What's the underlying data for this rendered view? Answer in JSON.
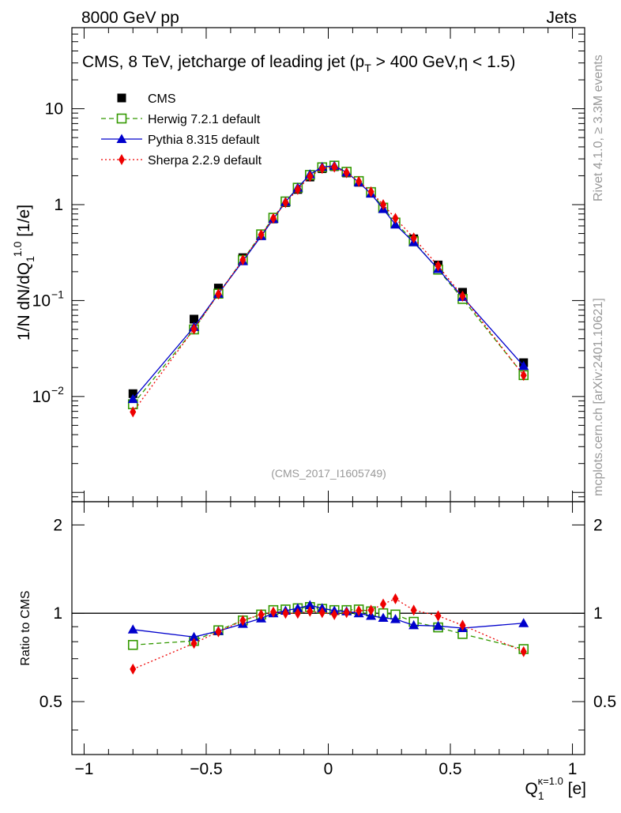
{
  "header": {
    "left": "8000 GeV pp",
    "right": "Jets"
  },
  "side_labels": {
    "rivet": "Rivet 4.1.0, ≥ 3.3M events",
    "mcplots": "mcplots.cern.ch [arXiv:2401.10621]"
  },
  "chart_data": {
    "type": "line",
    "title": "CMS, 8 TeV, jetcharge of leading jet (p",
    "title_sub": "T",
    "title_rest": " > 400 GeV,η < 1.5)",
    "watermark": "(CMS_2017_I1605749)",
    "ylabel_main": "1/N dN/dQ",
    "ylabel_sub": "1",
    "ylabel_sup": "1.0",
    "ylabel_unit": " [1/e]",
    "ratio_ylabel": "Ratio to CMS",
    "xlabel_main": "Q",
    "xlabel_sub": "1",
    "xlabel_sup": "κ=1.0",
    "xlabel_unit": " [e]",
    "xlim": [
      -1.05,
      1.05
    ],
    "ylim_log": [
      0.0008,
      70
    ],
    "ratio_ylim": [
      0.33,
      2.4
    ],
    "x_ticks": [
      {
        "value": -1,
        "label": "−1"
      },
      {
        "value": -0.5,
        "label": "−0.5"
      },
      {
        "value": 0,
        "label": "0"
      },
      {
        "value": 0.5,
        "label": "0.5"
      },
      {
        "value": 1,
        "label": "1"
      }
    ],
    "y_ticks": [
      {
        "value": 10,
        "label": "10",
        "sup": ""
      },
      {
        "value": 1,
        "label": "1",
        "sup": ""
      },
      {
        "value": 0.1,
        "label": "10",
        "sup": "−1"
      },
      {
        "value": 0.01,
        "label": "10",
        "sup": "−2"
      }
    ],
    "ratio_ticks": [
      {
        "value": 2,
        "label": "2"
      },
      {
        "value": 1,
        "label": "1"
      },
      {
        "value": 0.5,
        "label": "0.5"
      }
    ],
    "x": [
      -0.8,
      -0.55,
      -0.45,
      -0.35,
      -0.275,
      -0.225,
      -0.175,
      -0.125,
      -0.075,
      -0.025,
      0.025,
      0.075,
      0.125,
      0.175,
      0.225,
      0.275,
      0.35,
      0.45,
      0.55,
      0.8
    ],
    "series": [
      {
        "name": "CMS",
        "color": "#000000",
        "marker": "square-filled",
        "values": [
          0.0107,
          0.064,
          0.135,
          0.28,
          0.49,
          0.71,
          1.05,
          1.44,
          1.94,
          2.37,
          2.49,
          2.14,
          1.71,
          1.33,
          0.93,
          0.64,
          0.44,
          0.235,
          0.122,
          0.0225
        ]
      },
      {
        "name": "Herwig 7.2.1 default",
        "color": "#339900",
        "marker": "square-open",
        "dash": "6,4",
        "values": [
          0.0083,
          0.05,
          0.118,
          0.265,
          0.49,
          0.73,
          1.08,
          1.5,
          2.04,
          2.45,
          2.55,
          2.2,
          1.76,
          1.35,
          0.93,
          0.65,
          0.415,
          0.21,
          0.104,
          0.0167
        ]
      },
      {
        "name": "Pythia 8.315 default",
        "color": "#0000cc",
        "marker": "triangle-filled",
        "values": [
          0.0094,
          0.053,
          0.118,
          0.257,
          0.47,
          0.71,
          1.07,
          1.5,
          2.07,
          2.47,
          2.54,
          2.17,
          1.71,
          1.3,
          0.9,
          0.62,
          0.405,
          0.213,
          0.109,
          0.0208
        ]
      },
      {
        "name": "Sherpa 2.2.9 default",
        "color": "#ee0000",
        "marker": "diamond-filled",
        "dash": "2,3",
        "values": [
          0.0069,
          0.0505,
          0.117,
          0.265,
          0.485,
          0.72,
          1.05,
          1.44,
          1.97,
          2.38,
          2.46,
          2.15,
          1.74,
          1.36,
          1.0,
          0.72,
          0.45,
          0.23,
          0.111,
          0.0166
        ]
      }
    ],
    "ratio_series": [
      {
        "name": "Herwig 7.2.1 default",
        "values": [
          0.78,
          0.805,
          0.875,
          0.945,
          0.99,
          1.025,
          1.03,
          1.04,
          1.05,
          1.035,
          1.025,
          1.025,
          1.03,
          1.015,
          1.0,
          0.99,
          0.935,
          0.895,
          0.85,
          0.755
        ]
      },
      {
        "name": "Pythia 8.315 default",
        "values": [
          0.88,
          0.83,
          0.87,
          0.92,
          0.96,
          1.0,
          1.02,
          1.04,
          1.065,
          1.04,
          1.02,
          1.015,
          1.0,
          0.98,
          0.965,
          0.955,
          0.91,
          0.905,
          0.89,
          0.925
        ]
      },
      {
        "name": "Sherpa 2.2.9 default",
        "values": [
          0.645,
          0.79,
          0.865,
          0.945,
          0.99,
          1.01,
          1.0,
          1.0,
          1.015,
          1.005,
          0.99,
          1.005,
          1.02,
          1.025,
          1.075,
          1.12,
          1.025,
          0.98,
          0.91,
          0.74
        ]
      }
    ]
  }
}
